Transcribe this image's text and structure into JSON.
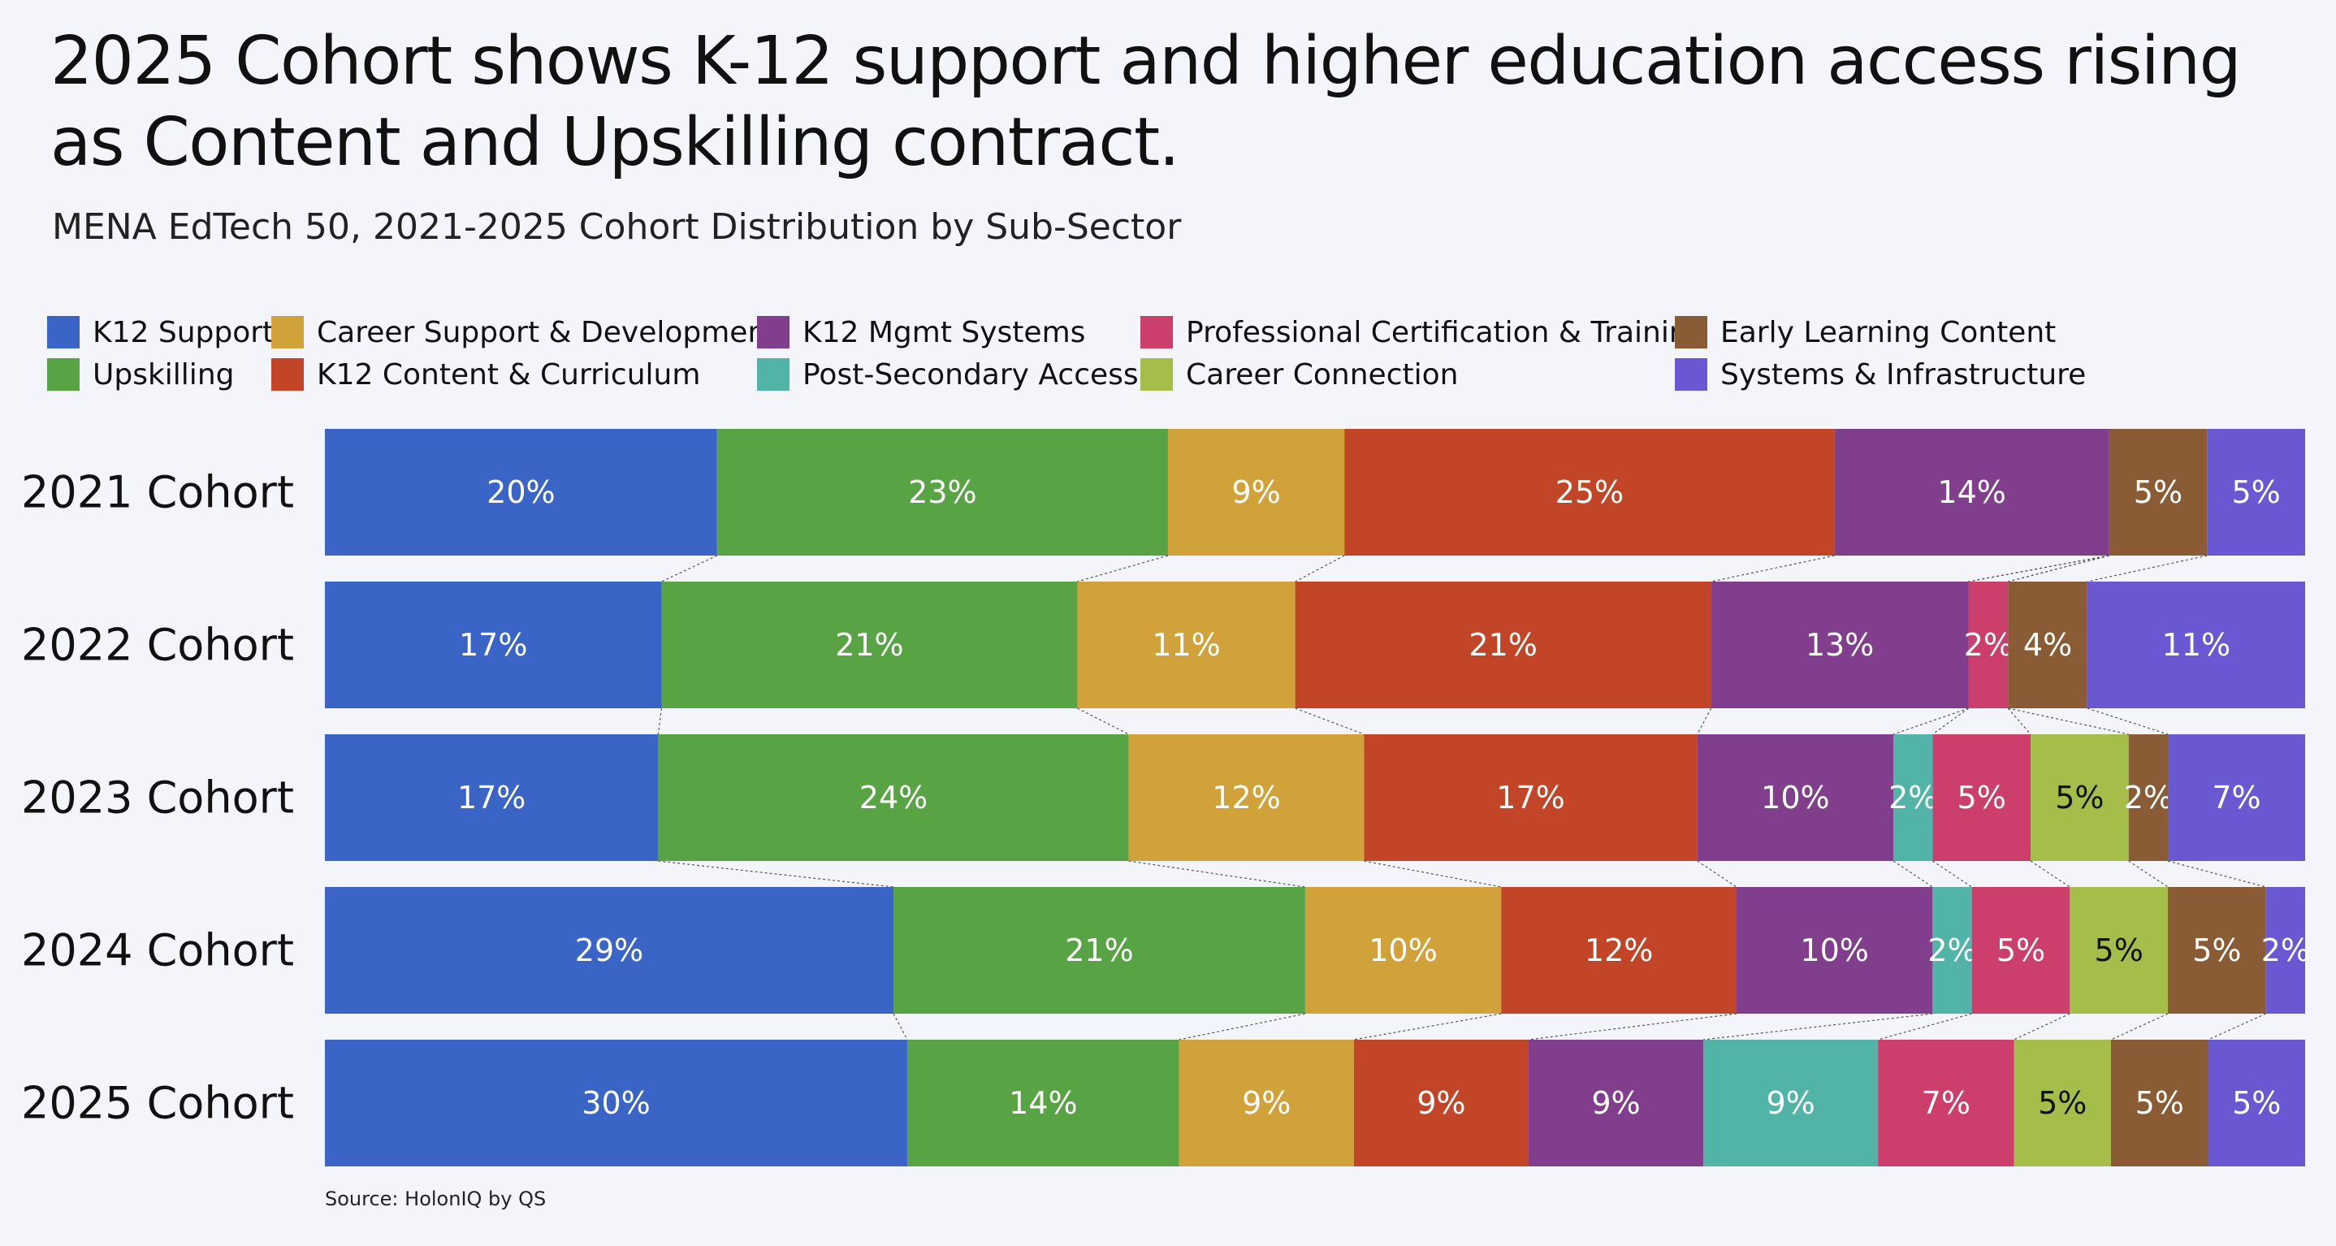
{
  "title": "2025 Cohort shows K-12 support and higher education access rising as Content and Upskilling contract.",
  "subtitle": "MENA EdTech 50, 2021-2025 Cohort Distribution by Sub-Sector",
  "source": "Source: HolonIQ by QS",
  "legend": [
    {
      "label": "K12 Support",
      "color": "#3a64c6"
    },
    {
      "label": "Career Support & Development",
      "color": "#d2a23a"
    },
    {
      "label": "K12 Mgmt Systems",
      "color": "#813e8c"
    },
    {
      "label": "Professional Certification & Training",
      "color": "#cc3e6b"
    },
    {
      "label": "Early Learning Content",
      "color": "#8a5c36"
    },
    {
      "label": "Upskilling",
      "color": "#58a445"
    },
    {
      "label": "K12 Content & Curriculum",
      "color": "#c24527"
    },
    {
      "label": "Post-Secondary Access",
      "color": "#52b4a7"
    },
    {
      "label": "Career Connection",
      "color": "#a5be49"
    },
    {
      "label": "Systems & Infrastructure",
      "color": "#6a58d2"
    }
  ],
  "chart_data": {
    "type": "bar",
    "orientation": "horizontal",
    "stacked": true,
    "normalized_percent": true,
    "title": "2025 Cohort shows K-12 support and higher education access rising as Content and Upskilling contract.",
    "subtitle": "MENA EdTech 50, 2021-2025 Cohort Distribution by Sub-Sector",
    "categories": [
      "2021 Cohort",
      "2022 Cohort",
      "2023 Cohort",
      "2024 Cohort",
      "2025 Cohort"
    ],
    "segment_order": [
      "K12 Support",
      "Upskilling",
      "Career Support & Development",
      "K12 Content & Curriculum",
      "K12 Mgmt Systems",
      "Post-Secondary Access",
      "Professional Certification & Training",
      "Career Connection",
      "Early Learning Content",
      "Systems & Infrastructure"
    ],
    "series": [
      {
        "name": "K12 Support",
        "color": "#3a64c6",
        "values": [
          20,
          17,
          17,
          29,
          30
        ]
      },
      {
        "name": "Upskilling",
        "color": "#58a445",
        "values": [
          23,
          21,
          24,
          21,
          14
        ]
      },
      {
        "name": "Career Support & Development",
        "color": "#d2a23a",
        "values": [
          9,
          11,
          12,
          10,
          9
        ]
      },
      {
        "name": "K12 Content & Curriculum",
        "color": "#c24527",
        "values": [
          25,
          21,
          17,
          12,
          9
        ]
      },
      {
        "name": "K12 Mgmt Systems",
        "color": "#813e8c",
        "values": [
          14,
          13,
          10,
          10,
          9
        ]
      },
      {
        "name": "Post-Secondary Access",
        "color": "#52b4a7",
        "values": [
          0,
          0,
          2,
          2,
          9
        ]
      },
      {
        "name": "Professional Certification & Training",
        "color": "#cc3e6b",
        "values": [
          0,
          2,
          5,
          5,
          7
        ]
      },
      {
        "name": "Career Connection",
        "color": "#a5be49",
        "values": [
          0,
          0,
          5,
          5,
          5
        ]
      },
      {
        "name": "Early Learning Content",
        "color": "#8a5c36",
        "values": [
          5,
          4,
          2,
          5,
          5
        ]
      },
      {
        "name": "Systems & Infrastructure",
        "color": "#6a58d2",
        "values": [
          5,
          11,
          7,
          2,
          5
        ]
      }
    ],
    "value_suffix": "%",
    "legend_position": "top-left",
    "connector_lines": true,
    "grid": false
  }
}
